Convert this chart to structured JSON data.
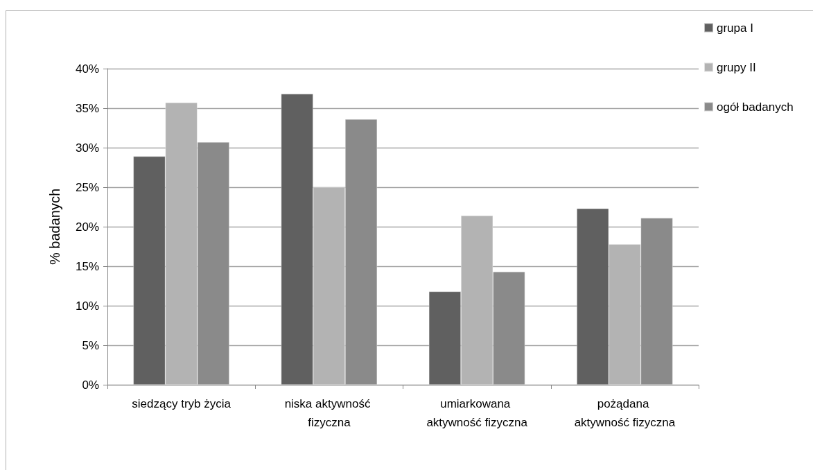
{
  "chart_data": {
    "type": "bar",
    "ylabel": "% badanych",
    "categories": [
      "siedzący tryb życia",
      "niska aktywność fizyczna",
      "umiarkowana aktywność fizyczna",
      "pożądana aktywność fizyczna"
    ],
    "series": [
      {
        "name": "grupa I",
        "color": "#606060",
        "values": [
          28.9,
          36.8,
          11.8,
          22.3
        ]
      },
      {
        "name": "grupy II",
        "color": "#b3b3b3",
        "values": [
          35.7,
          25.0,
          21.4,
          17.8
        ]
      },
      {
        "name": "ogół badanych",
        "color": "#8a8a8a",
        "values": [
          30.7,
          33.6,
          14.3,
          21.1
        ]
      }
    ],
    "ylim": [
      0,
      40
    ],
    "yticks": [
      {
        "value": 0,
        "label": "0%"
      },
      {
        "value": 5,
        "label": "5%"
      },
      {
        "value": 10,
        "label": "10%"
      },
      {
        "value": 15,
        "label": "15%"
      },
      {
        "value": 20,
        "label": "20%"
      },
      {
        "value": 25,
        "label": "25%"
      },
      {
        "value": 30,
        "label": "30%"
      },
      {
        "value": 35,
        "label": "35%"
      },
      {
        "value": 40,
        "label": "40%"
      }
    ],
    "grid": "y",
    "legend": "right"
  }
}
